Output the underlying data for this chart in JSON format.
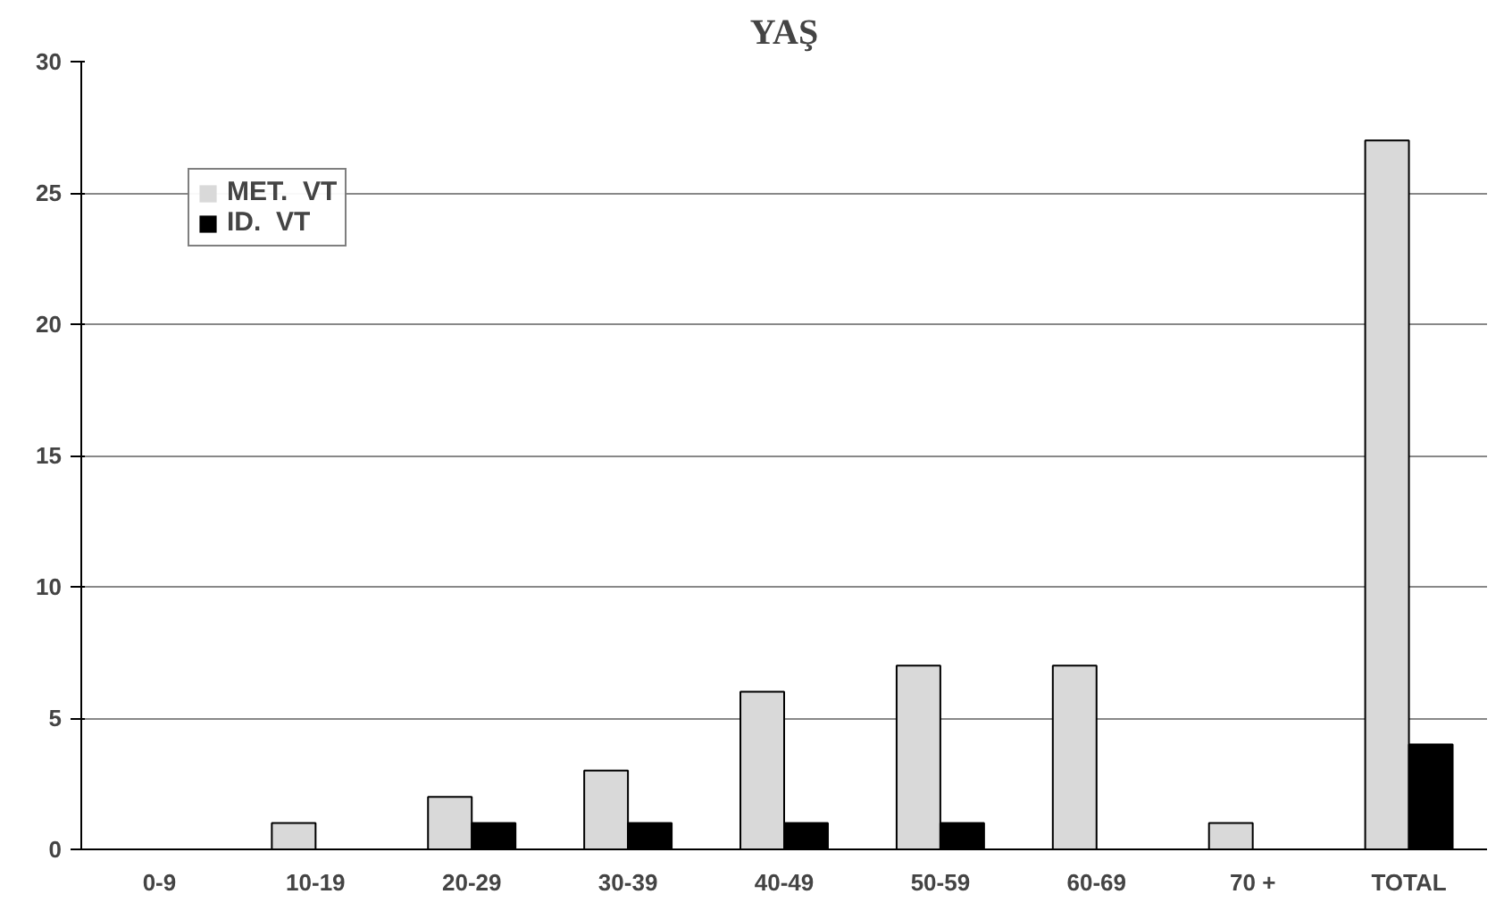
{
  "chart_data": {
    "type": "bar",
    "title": "YAŞ",
    "categories": [
      "0-9",
      "10-19",
      "20-29",
      "30-39",
      "40-49",
      "50-59",
      "60-69",
      "70 +",
      "TOTAL"
    ],
    "series": [
      {
        "name": "MET.  VT",
        "color": "#d9d9d9",
        "values": [
          0,
          1,
          2,
          3,
          6,
          7,
          7,
          1,
          27
        ]
      },
      {
        "name": "ID.  VT",
        "color": "#000000",
        "values": [
          0,
          0,
          1,
          1,
          1,
          1,
          0,
          0,
          4
        ]
      }
    ],
    "ylim": [
      0,
      30
    ],
    "yticks": [
      0,
      5,
      10,
      15,
      20,
      25,
      30
    ],
    "grid": "y",
    "legend": "top left"
  }
}
